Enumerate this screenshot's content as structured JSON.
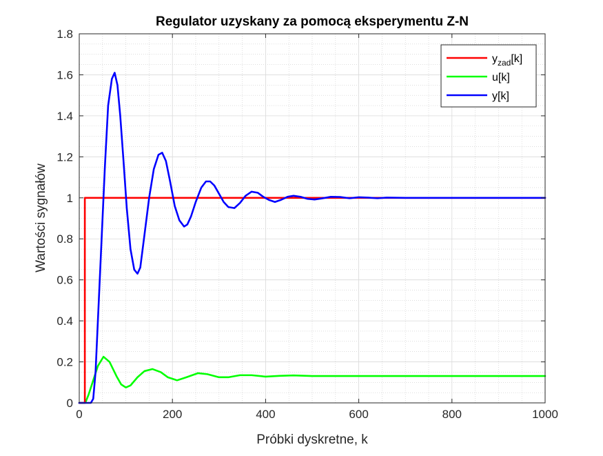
{
  "chart_data": {
    "type": "line",
    "title": "Regulator uzyskany za pomocą eksperymentu Z-N",
    "xlabel": "Próbki dyskretne, k",
    "ylabel": "Wartości sygnałów",
    "xlim": [
      0,
      1000
    ],
    "ylim": [
      0,
      1.8
    ],
    "xticks": [
      "0",
      "200",
      "400",
      "600",
      "800",
      "1000"
    ],
    "yticks": [
      "0",
      "0.2",
      "0.4",
      "0.6",
      "0.8",
      "1",
      "1.2",
      "1.4",
      "1.6",
      "1.8"
    ],
    "grid": true,
    "minor_grid": true,
    "legend_placement": "top-right",
    "legend": [
      {
        "base": "y",
        "sub": "zad",
        "suffix": "[k]",
        "color": "#ff0000"
      },
      {
        "base": "u[k]",
        "sub": "",
        "suffix": "",
        "color": "#00ff00"
      },
      {
        "base": "y[k]",
        "sub": "",
        "suffix": "",
        "color": "#0000ff"
      }
    ],
    "series": [
      {
        "name": "yzad[k]",
        "color": "#ff0000",
        "x": [
          0,
          12,
          12,
          1000
        ],
        "y": [
          0,
          0,
          1,
          1
        ]
      },
      {
        "name": "u[k]",
        "color": "#00ff00",
        "x": [
          0,
          13,
          20,
          30,
          40,
          52,
          65,
          80,
          90,
          100,
          110,
          125,
          140,
          157,
          175,
          190,
          210,
          230,
          255,
          275,
          300,
          320,
          345,
          370,
          400,
          430,
          460,
          500,
          550,
          600,
          700,
          800,
          900,
          1000
        ],
        "y": [
          0,
          0,
          0.04,
          0.11,
          0.18,
          0.225,
          0.2,
          0.13,
          0.09,
          0.075,
          0.085,
          0.125,
          0.155,
          0.165,
          0.15,
          0.125,
          0.11,
          0.125,
          0.145,
          0.14,
          0.125,
          0.125,
          0.135,
          0.135,
          0.128,
          0.132,
          0.134,
          0.131,
          0.131,
          0.131,
          0.131,
          0.131,
          0.131,
          0.131
        ]
      },
      {
        "name": "y[k]",
        "color": "#0000ff",
        "x": [
          0,
          25,
          30,
          35,
          40,
          48,
          55,
          62,
          70,
          76,
          82,
          88,
          95,
          102,
          110,
          118,
          125,
          131,
          140,
          150,
          160,
          170,
          178,
          186,
          195,
          205,
          215,
          225,
          232,
          240,
          250,
          262,
          272,
          281,
          290,
          300,
          310,
          320,
          333,
          345,
          357,
          370,
          383,
          395,
          407,
          420,
          433,
          447,
          460,
          475,
          490,
          505,
          520,
          540,
          560,
          580,
          600,
          620,
          640,
          660,
          700,
          750,
          800,
          1000
        ],
        "y": [
          0,
          0,
          0.02,
          0.15,
          0.4,
          0.8,
          1.15,
          1.45,
          1.58,
          1.61,
          1.55,
          1.4,
          1.18,
          0.95,
          0.75,
          0.65,
          0.63,
          0.66,
          0.82,
          1.0,
          1.14,
          1.21,
          1.22,
          1.18,
          1.08,
          0.96,
          0.89,
          0.86,
          0.87,
          0.91,
          0.98,
          1.05,
          1.08,
          1.08,
          1.06,
          1.02,
          0.98,
          0.955,
          0.95,
          0.975,
          1.01,
          1.03,
          1.025,
          1.005,
          0.99,
          0.98,
          0.99,
          1.005,
          1.01,
          1.005,
          0.995,
          0.992,
          0.997,
          1.005,
          1.004,
          0.998,
          1.003,
          1.001,
          0.998,
          1.001,
          1.0,
          1.0,
          1.0,
          1.0
        ]
      }
    ]
  }
}
